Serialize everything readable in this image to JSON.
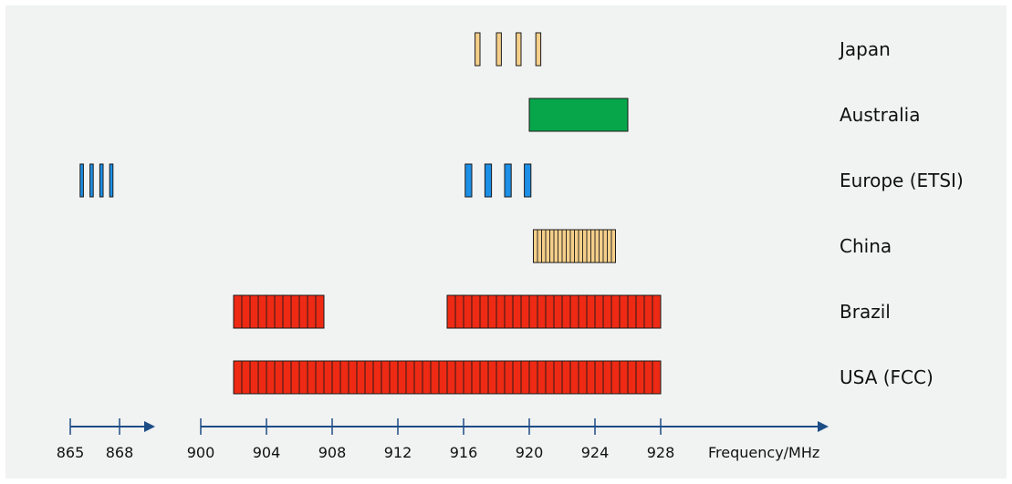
{
  "chart_data": {
    "type": "bar",
    "xlabel": "Frequency/MHz",
    "axes": [
      {
        "id": "low",
        "range": [
          865,
          873.5
        ],
        "ticks": [
          865,
          868
        ]
      },
      {
        "id": "main",
        "range": [
          900,
          926
        ],
        "ticks": [
          900,
          904,
          908,
          912,
          916,
          920,
          924,
          928
        ]
      }
    ],
    "colors": {
      "red": "#ee2a14",
      "blue": "#1c8fe6",
      "tan": "#f5cf8a",
      "green": "#07a64a",
      "axis": "#1d4d86"
    },
    "regions": [
      {
        "label": "Japan",
        "color": "#f5cf8a",
        "bands": [
          {
            "axis": "main",
            "start": 916.7,
            "end": 917.0
          },
          {
            "axis": "main",
            "start": 918.0,
            "end": 918.3
          },
          {
            "axis": "main",
            "start": 919.2,
            "end": 919.5
          },
          {
            "axis": "main",
            "start": 920.4,
            "end": 920.7
          }
        ]
      },
      {
        "label": "Australia",
        "color": "#07a64a",
        "bands": [
          {
            "axis": "main",
            "start": 920.0,
            "end": 926.0
          }
        ]
      },
      {
        "label": "Europe (ETSI)",
        "color": "#1c8fe6",
        "bands": [
          {
            "axis": "low",
            "start": 865.6,
            "end": 865.8
          },
          {
            "axis": "low",
            "start": 866.2,
            "end": 866.4
          },
          {
            "axis": "low",
            "start": 866.8,
            "end": 867.0
          },
          {
            "axis": "low",
            "start": 867.4,
            "end": 867.6
          },
          {
            "axis": "main",
            "start": 916.1,
            "end": 916.5
          },
          {
            "axis": "main",
            "start": 917.3,
            "end": 917.7
          },
          {
            "axis": "main",
            "start": 918.5,
            "end": 918.9
          },
          {
            "axis": "main",
            "start": 919.7,
            "end": 920.1
          }
        ]
      },
      {
        "label": "China",
        "color": "#f5cf8a",
        "bands": [
          {
            "axis": "main",
            "start": 920.25,
            "end": 925.25,
            "channels": 20
          }
        ]
      },
      {
        "label": "Brazil",
        "color": "#ee2a14",
        "bands": [
          {
            "axis": "main",
            "start": 902.0,
            "end": 907.5,
            "channels": 11
          },
          {
            "axis": "main",
            "start": 915.0,
            "end": 928.0,
            "channels": 26
          }
        ]
      },
      {
        "label": "USA (FCC)",
        "color": "#ee2a14",
        "bands": [
          {
            "axis": "main",
            "start": 902.0,
            "end": 928.0,
            "channels": 52
          }
        ]
      }
    ]
  }
}
